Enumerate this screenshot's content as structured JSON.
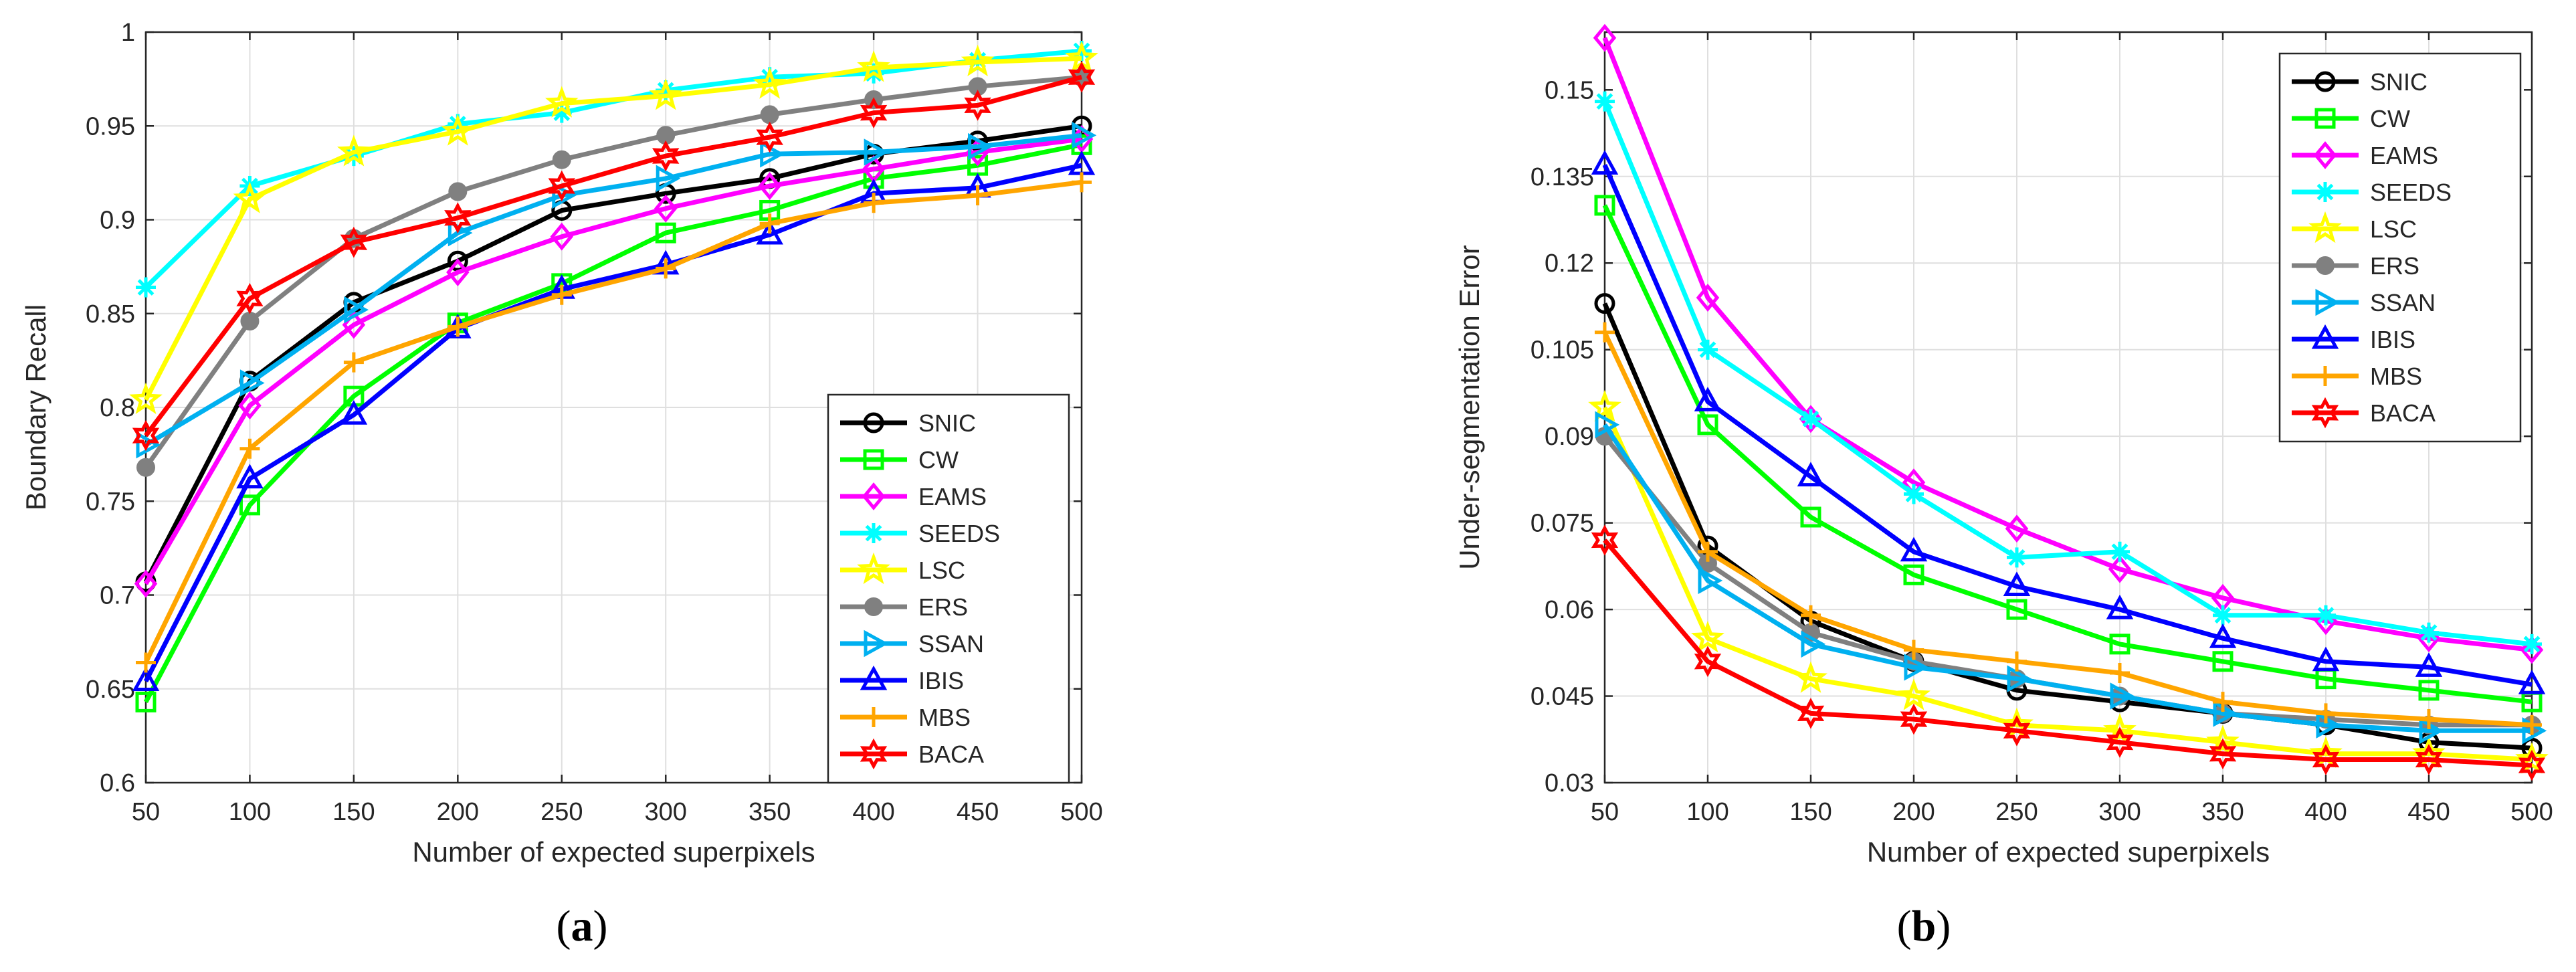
{
  "captions": {
    "a": "a",
    "b": "b"
  },
  "chart_data": [
    {
      "type": "line",
      "title": "",
      "xlabel": "Number of expected superpixels",
      "ylabel": "Boundary Recall",
      "x": [
        50,
        100,
        150,
        200,
        250,
        300,
        350,
        400,
        450,
        500
      ],
      "xlim": [
        50,
        500
      ],
      "ylim": [
        0.6,
        1
      ],
      "xticks": [
        50,
        100,
        150,
        200,
        250,
        300,
        350,
        400,
        450,
        500
      ],
      "xtick_labels": [
        "50",
        "100",
        "150",
        "200",
        "250",
        "300",
        "350",
        "400",
        "450",
        "500"
      ],
      "yticks": [
        0.6,
        0.65,
        0.7,
        0.75,
        0.8,
        0.85,
        0.9,
        0.95,
        1
      ],
      "ytick_labels": [
        "0.6",
        "0.65",
        "0.7",
        "0.75",
        "0.8",
        "0.85",
        "0.9",
        "0.95",
        "1"
      ],
      "grid": true,
      "legend_position": "bottom-right",
      "series": [
        {
          "name": "SNIC",
          "color": "#000000",
          "marker": "circle",
          "values": [
            0.707,
            0.814,
            0.856,
            0.878,
            0.905,
            0.914,
            0.922,
            0.935,
            0.942,
            0.95
          ]
        },
        {
          "name": "CW",
          "color": "#00ff00",
          "marker": "square",
          "values": [
            0.643,
            0.748,
            0.806,
            0.845,
            0.866,
            0.893,
            0.905,
            0.922,
            0.929,
            0.94
          ]
        },
        {
          "name": "EAMS",
          "color": "#ff00ff",
          "marker": "diamond",
          "values": [
            0.706,
            0.801,
            0.844,
            0.872,
            0.891,
            0.906,
            0.918,
            0.927,
            0.936,
            0.943
          ]
        },
        {
          "name": "SEEDS",
          "color": "#00ffff",
          "marker": "asterisk",
          "values": [
            0.864,
            0.918,
            0.934,
            0.951,
            0.957,
            0.969,
            0.976,
            0.978,
            0.985,
            0.99
          ]
        },
        {
          "name": "LSC",
          "color": "#ffff00",
          "marker": "star",
          "values": [
            0.804,
            0.911,
            0.936,
            0.947,
            0.962,
            0.966,
            0.972,
            0.981,
            0.984,
            0.986
          ]
        },
        {
          "name": "ERS",
          "color": "#808080",
          "marker": "dot",
          "values": [
            0.768,
            0.846,
            0.89,
            0.915,
            0.932,
            0.945,
            0.956,
            0.964,
            0.971,
            0.976
          ]
        },
        {
          "name": "SSAN",
          "color": "#00b0f0",
          "marker": "triangle-right",
          "values": [
            0.78,
            0.813,
            0.852,
            0.893,
            0.913,
            0.922,
            0.935,
            0.936,
            0.939,
            0.945
          ]
        },
        {
          "name": "IBIS",
          "color": "#0000ff",
          "marker": "triangle-up",
          "values": [
            0.654,
            0.762,
            0.796,
            0.842,
            0.863,
            0.876,
            0.892,
            0.914,
            0.917,
            0.929
          ]
        },
        {
          "name": "MBS",
          "color": "#ffa500",
          "marker": "plus",
          "values": [
            0.664,
            0.778,
            0.824,
            0.843,
            0.86,
            0.874,
            0.898,
            0.909,
            0.913,
            0.92
          ]
        },
        {
          "name": "BACA",
          "color": "#ff0000",
          "marker": "hexagram",
          "values": [
            0.785,
            0.858,
            0.888,
            0.901,
            0.918,
            0.934,
            0.944,
            0.957,
            0.961,
            0.976
          ]
        }
      ]
    },
    {
      "type": "line",
      "title": "",
      "xlabel": "Number of expected superpixels",
      "ylabel": "Under-segmentation Error",
      "x": [
        50,
        100,
        150,
        200,
        250,
        300,
        350,
        400,
        450,
        500
      ],
      "xlim": [
        50,
        500
      ],
      "ylim": [
        0.03,
        0.16
      ],
      "xticks": [
        50,
        100,
        150,
        200,
        250,
        300,
        350,
        400,
        450,
        500
      ],
      "xtick_labels": [
        "50",
        "100",
        "150",
        "200",
        "250",
        "300",
        "350",
        "400",
        "450",
        "500"
      ],
      "yticks": [
        0.03,
        0.045,
        0.06,
        0.075,
        0.09,
        0.105,
        0.12,
        0.135,
        0.15
      ],
      "ytick_labels": [
        "0.03",
        "0.045",
        "0.06",
        "0.075",
        "0.09",
        "0.105",
        "0.12",
        "0.135",
        "0.15"
      ],
      "grid": true,
      "legend_position": "top-right",
      "series": [
        {
          "name": "SNIC",
          "color": "#000000",
          "marker": "circle",
          "values": [
            0.113,
            0.071,
            0.058,
            0.051,
            0.046,
            0.044,
            0.042,
            0.04,
            0.037,
            0.036
          ]
        },
        {
          "name": "CW",
          "color": "#00ff00",
          "marker": "square",
          "values": [
            0.13,
            0.092,
            0.076,
            0.066,
            0.06,
            0.054,
            0.051,
            0.048,
            0.046,
            0.044
          ]
        },
        {
          "name": "EAMS",
          "color": "#ff00ff",
          "marker": "diamond",
          "values": [
            0.159,
            0.114,
            0.093,
            0.082,
            0.074,
            0.067,
            0.062,
            0.058,
            0.055,
            0.053
          ]
        },
        {
          "name": "SEEDS",
          "color": "#00ffff",
          "marker": "asterisk",
          "values": [
            0.148,
            0.105,
            0.093,
            0.08,
            0.069,
            0.07,
            0.059,
            0.059,
            0.056,
            0.054
          ]
        },
        {
          "name": "LSC",
          "color": "#ffff00",
          "marker": "star",
          "values": [
            0.095,
            0.055,
            0.048,
            0.045,
            0.04,
            0.039,
            0.037,
            0.035,
            0.035,
            0.034
          ]
        },
        {
          "name": "ERS",
          "color": "#808080",
          "marker": "dot",
          "values": [
            0.09,
            0.068,
            0.056,
            0.051,
            0.048,
            0.045,
            0.042,
            0.041,
            0.04,
            0.04
          ]
        },
        {
          "name": "SSAN",
          "color": "#00b0f0",
          "marker": "triangle-right",
          "values": [
            0.092,
            0.065,
            0.054,
            0.05,
            0.048,
            0.045,
            0.042,
            0.04,
            0.039,
            0.039
          ]
        },
        {
          "name": "IBIS",
          "color": "#0000ff",
          "marker": "triangle-up",
          "values": [
            0.137,
            0.096,
            0.083,
            0.07,
            0.064,
            0.06,
            0.055,
            0.051,
            0.05,
            0.047
          ]
        },
        {
          "name": "MBS",
          "color": "#ffa500",
          "marker": "plus",
          "values": [
            0.108,
            0.07,
            0.059,
            0.053,
            0.051,
            0.049,
            0.044,
            0.042,
            0.041,
            0.04
          ]
        },
        {
          "name": "BACA",
          "color": "#ff0000",
          "marker": "hexagram",
          "values": [
            0.072,
            0.051,
            0.042,
            0.041,
            0.039,
            0.037,
            0.035,
            0.034,
            0.034,
            0.033
          ]
        }
      ]
    }
  ]
}
